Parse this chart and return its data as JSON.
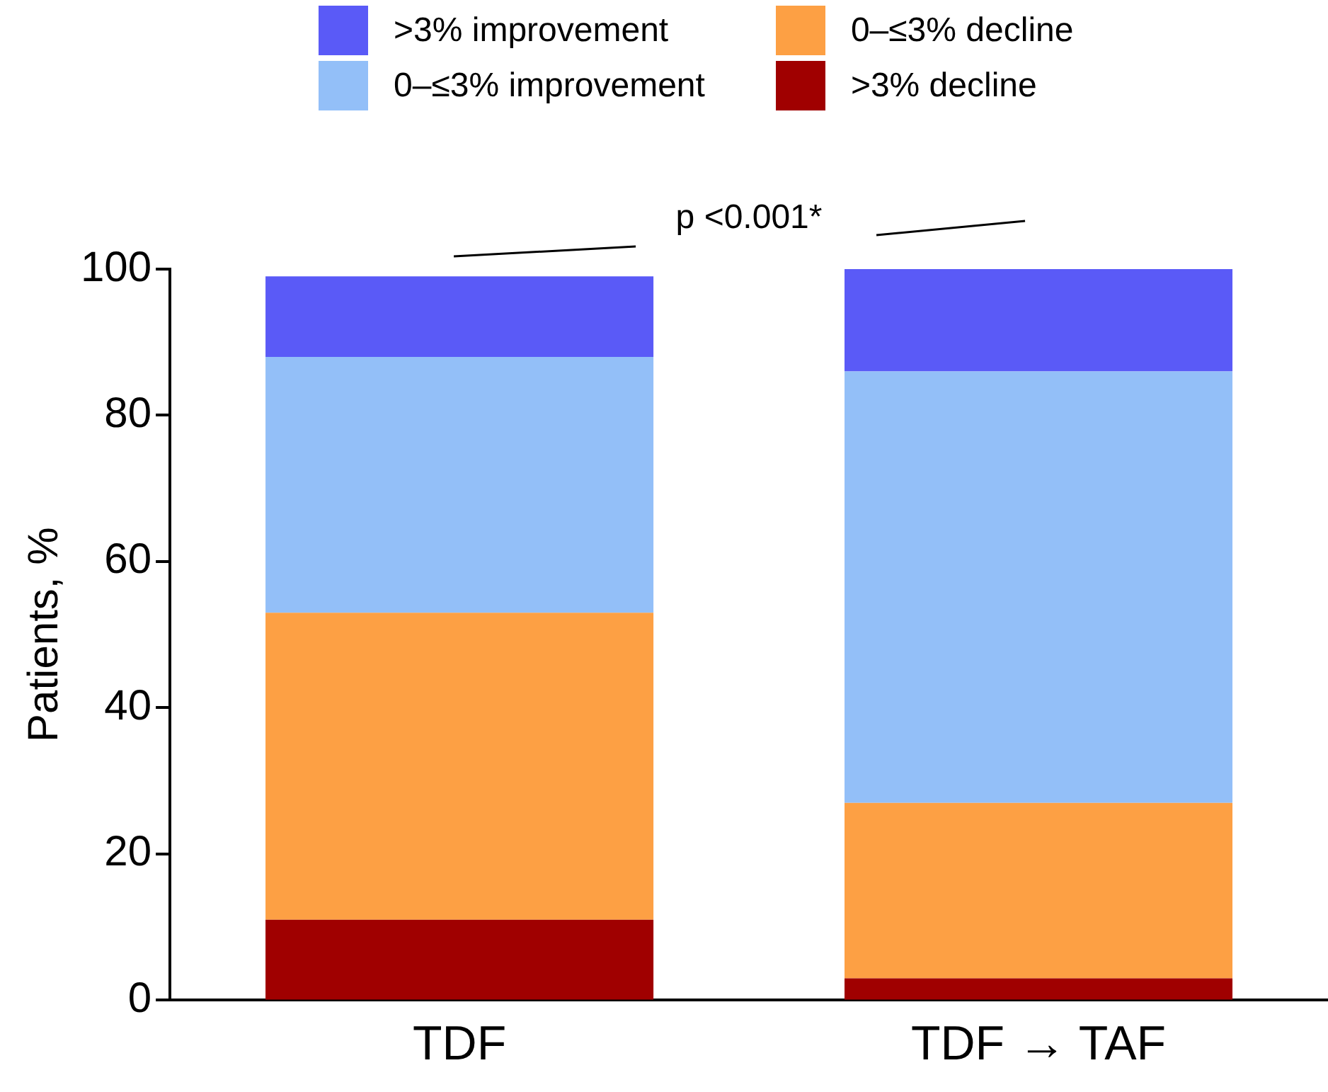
{
  "chart_data": {
    "type": "bar",
    "stacked": true,
    "ylabel": "Patients, %",
    "categories": [
      "TDF",
      "TDF → TAF"
    ],
    "series": [
      {
        "name": ">3% decline",
        "color": "#a00000",
        "values": [
          11,
          3
        ]
      },
      {
        "name": "0–≤3% decline",
        "color": "#fda044",
        "values": [
          42,
          24
        ]
      },
      {
        "name": "0–≤3% improvement",
        "color": "#93bff8",
        "values": [
          35,
          59
        ]
      },
      {
        "name": ">3% improvement",
        "color": "#5a5af7",
        "values": [
          11,
          14
        ]
      }
    ],
    "ylim": [
      0,
      100
    ],
    "yticks": [
      0,
      20,
      40,
      60,
      80,
      100
    ],
    "grid": false,
    "legend": "top",
    "annotations": [
      "p <0.001*"
    ]
  }
}
